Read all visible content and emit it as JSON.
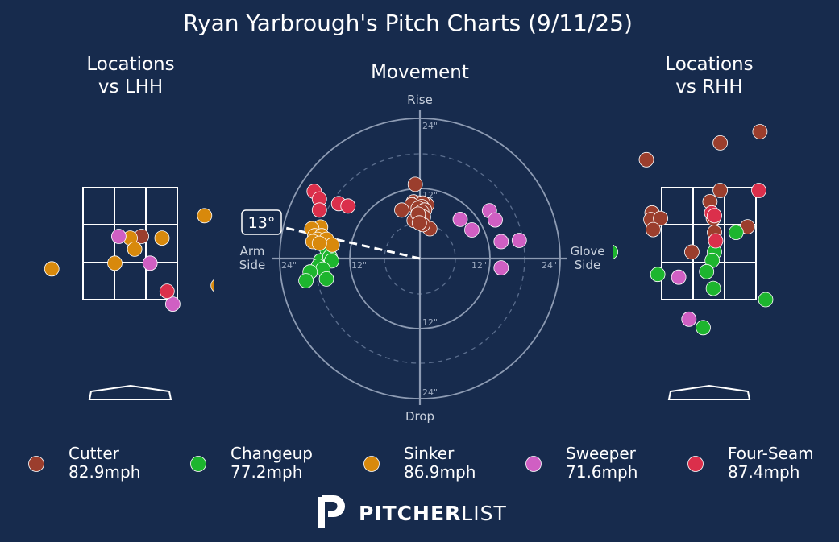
{
  "title": "Ryan Yarbrough's Pitch Charts (9/11/25)",
  "panels": {
    "lhh_title": [
      "Locations",
      "vs LHH"
    ],
    "movement_title": "Movement",
    "rhh_title": [
      "Locations",
      "vs RHH"
    ]
  },
  "movement_labels": {
    "rise": "Rise",
    "drop": "Drop",
    "arm_side": [
      "Arm",
      "Side"
    ],
    "glove_side": [
      "Glove",
      "Side"
    ],
    "ring_12": "12\"",
    "ring_24": "24\"",
    "arm_angle": "13°"
  },
  "brand": {
    "logo_letters": "PITCHER",
    "logo_light": "LIST"
  },
  "colors": {
    "background": "#172b4d",
    "Cutter": "#9b3e2d",
    "Changeup": "#1db52e",
    "Sinker": "#d8890c",
    "Sweeper": "#d05fc3",
    "Four-Seam": "#db2f4b"
  },
  "chart_data": [
    {
      "type": "scatter",
      "name": "Movement",
      "units": "inches",
      "xlabel": "Arm Side / Glove Side",
      "ylabel": "Drop / Rise",
      "xlim": [
        -24,
        24
      ],
      "ylim": [
        -24,
        24
      ],
      "arm_angle_deg": 13,
      "series": [
        {
          "name": "Cutter",
          "points": [
            [
              -0.8,
              12.7
            ],
            [
              -1.1,
              9.7
            ],
            [
              -0.1,
              9.5
            ],
            [
              1.2,
              9.2
            ],
            [
              0.5,
              9.5
            ],
            [
              -1.4,
              9.2
            ],
            [
              0.3,
              8.9
            ],
            [
              -0.3,
              8.6
            ],
            [
              0.8,
              8.3
            ],
            [
              0.3,
              8.0
            ],
            [
              -3.1,
              8.3
            ],
            [
              -1.0,
              6.5
            ],
            [
              0.2,
              6.5
            ],
            [
              0.6,
              7.1
            ],
            [
              -0.3,
              7.6
            ],
            [
              1.7,
              5.1
            ],
            [
              0.5,
              5.8
            ],
            [
              -0.1,
              6.1
            ]
          ]
        },
        {
          "name": "Changeup",
          "points": [
            [
              -15.9,
              1.5
            ],
            [
              -17.0,
              -0.4
            ],
            [
              -15.4,
              0.3
            ],
            [
              -15.1,
              -0.4
            ],
            [
              -17.4,
              -1.3
            ],
            [
              -16.6,
              -1.8
            ],
            [
              -18.8,
              -2.3
            ],
            [
              -16.0,
              -3.5
            ],
            [
              -19.5,
              -3.8
            ]
          ]
        },
        {
          "name": "Sinker",
          "points": [
            [
              -17.0,
              5.4
            ],
            [
              -18.5,
              5.1
            ],
            [
              -18.0,
              3.9
            ],
            [
              -16.8,
              3.9
            ],
            [
              -17.5,
              3.3
            ],
            [
              -18.3,
              2.9
            ],
            [
              -16.0,
              3.3
            ],
            [
              -15.0,
              2.3
            ],
            [
              -17.2,
              2.6
            ]
          ]
        },
        {
          "name": "Sweeper",
          "points": [
            [
              6.9,
              6.7
            ],
            [
              11.9,
              8.2
            ],
            [
              8.9,
              4.9
            ],
            [
              12.9,
              6.6
            ],
            [
              13.9,
              2.9
            ],
            [
              17.0,
              3.1
            ],
            [
              13.9,
              -1.6
            ]
          ]
        },
        {
          "name": "Four-Seam",
          "points": [
            [
              -18.1,
              11.5
            ],
            [
              -17.2,
              10.2
            ],
            [
              -13.9,
              9.4
            ],
            [
              -12.3,
              9.0
            ],
            [
              -17.2,
              8.3
            ]
          ]
        }
      ]
    },
    {
      "type": "scatter",
      "name": "Locations vs LHH",
      "units": "feet",
      "xlim": [
        -2.5,
        2.5
      ],
      "ylim": [
        0,
        5
      ],
      "series": [
        {
          "name": "Cutter",
          "points": [
            [
              0.2,
              2.63
            ]
          ]
        },
        {
          "name": "Changeup",
          "points": []
        },
        {
          "name": "Sinker",
          "points": [
            [
              1.31,
              3.0
            ],
            [
              0.0,
              2.6
            ],
            [
              0.56,
              2.6
            ],
            [
              0.08,
              2.4
            ],
            [
              -0.27,
              2.15
            ],
            [
              -1.38,
              2.05
            ],
            [
              1.55,
              1.75
            ]
          ]
        },
        {
          "name": "Sweeper",
          "points": [
            [
              -0.2,
              2.63
            ],
            [
              0.35,
              2.15
            ],
            [
              0.75,
              1.42
            ]
          ]
        },
        {
          "name": "Four-Seam",
          "points": [
            [
              0.65,
              1.65
            ]
          ]
        }
      ]
    },
    {
      "type": "scatter",
      "name": "Locations vs RHH",
      "units": "feet",
      "xlim": [
        -2.5,
        2.5
      ],
      "ylim": [
        0,
        5
      ],
      "series": [
        {
          "name": "Cutter",
          "points": [
            [
              0.9,
              4.5
            ],
            [
              0.2,
              4.3
            ],
            [
              -1.1,
              4.0
            ],
            [
              0.2,
              3.45
            ],
            [
              -1.0,
              3.05
            ],
            [
              0.02,
              3.25
            ],
            [
              -1.02,
              2.93
            ],
            [
              -0.85,
              2.95
            ],
            [
              0.08,
              2.95
            ],
            [
              0.68,
              2.8
            ],
            [
              -0.98,
              2.75
            ],
            [
              0.1,
              2.7
            ],
            [
              -0.3,
              2.35
            ]
          ]
        },
        {
          "name": "Changeup",
          "points": [
            [
              0.48,
              2.7
            ],
            [
              0.1,
              2.35
            ],
            [
              -1.73,
              2.35
            ],
            [
              0.06,
              2.2
            ],
            [
              -0.9,
              1.95
            ],
            [
              -0.04,
              2.0
            ],
            [
              0.08,
              1.7
            ],
            [
              1.0,
              1.5
            ],
            [
              -0.1,
              1.0
            ]
          ]
        },
        {
          "name": "Sinker",
          "points": []
        },
        {
          "name": "Sweeper",
          "points": [
            [
              -2.15,
              1.75
            ],
            [
              -0.53,
              1.9
            ],
            [
              -0.35,
              1.15
            ]
          ]
        },
        {
          "name": "Four-Seam",
          "points": [
            [
              0.88,
              3.45
            ],
            [
              0.05,
              3.05
            ],
            [
              0.1,
              3.0
            ],
            [
              2.48,
              2.55
            ],
            [
              0.12,
              2.55
            ]
          ]
        }
      ]
    }
  ],
  "legend": [
    {
      "pitch": "Cutter",
      "speed": "82.9mph"
    },
    {
      "pitch": "Changeup",
      "speed": "77.2mph"
    },
    {
      "pitch": "Sinker",
      "speed": "86.9mph"
    },
    {
      "pitch": "Sweeper",
      "speed": "71.6mph"
    },
    {
      "pitch": "Four-Seam",
      "speed": "87.4mph"
    }
  ]
}
